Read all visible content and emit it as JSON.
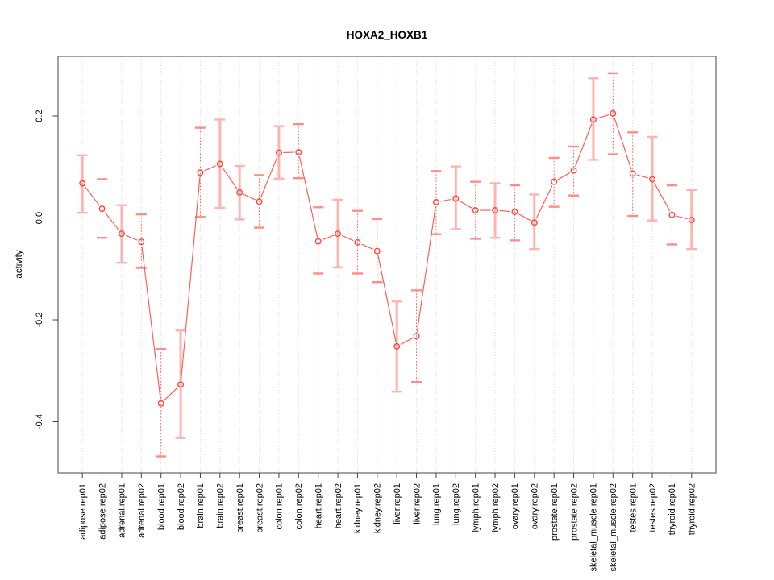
{
  "window": {
    "background": "#ffffff"
  },
  "chart_data": {
    "type": "line",
    "variant": "points-with-error-bars",
    "title": "HOXA2_HOXB1",
    "xlabel": "",
    "ylabel": "activity",
    "legend_position": "none",
    "categories": [
      "adipose.rep01",
      "adipose.rep02",
      "adrenal.rep01",
      "adrenal.rep02",
      "blood.rep01",
      "blood.rep02",
      "brain.rep01",
      "brain.rep02",
      "breast.rep01",
      "breast.rep02",
      "colon.rep01",
      "colon.rep02",
      "heart.rep01",
      "heart.rep02",
      "kidney.rep01",
      "kidney.rep02",
      "liver.rep01",
      "liver.rep02",
      "lung.rep01",
      "lung.rep02",
      "lymph.rep01",
      "lymph.rep02",
      "ovary.rep01",
      "ovary.rep02",
      "prostate.rep01",
      "prostate.rep02",
      "skeletal_muscle.rep01",
      "skeletal_muscle.rep02",
      "testes.rep01",
      "testes.rep02",
      "thyroid.rep01",
      "thyroid.rep02"
    ],
    "series": [
      {
        "name": "HOXA2_HOXB1 activity",
        "values": [
          0.068,
          0.018,
          -0.031,
          -0.047,
          -0.364,
          -0.327,
          0.089,
          0.106,
          0.05,
          0.032,
          0.128,
          0.129,
          -0.046,
          -0.031,
          -0.048,
          -0.065,
          -0.252,
          -0.232,
          0.031,
          0.038,
          0.015,
          0.015,
          0.012,
          -0.009,
          0.071,
          0.093,
          0.193,
          0.205,
          0.087,
          0.076,
          0.006,
          -0.004
        ],
        "err_low": [
          0.01,
          -0.039,
          -0.088,
          -0.098,
          -0.468,
          -0.432,
          0.002,
          0.02,
          -0.003,
          -0.019,
          0.077,
          0.078,
          -0.109,
          -0.097,
          -0.109,
          -0.126,
          -0.341,
          -0.322,
          -0.032,
          -0.022,
          -0.041,
          -0.039,
          -0.044,
          -0.061,
          0.022,
          0.044,
          0.114,
          0.125,
          0.004,
          -0.005,
          -0.052,
          -0.061
        ],
        "err_high": [
          0.123,
          0.076,
          0.025,
          0.007,
          -0.257,
          -0.221,
          0.177,
          0.193,
          0.102,
          0.084,
          0.18,
          0.184,
          0.021,
          0.036,
          0.014,
          -0.002,
          -0.164,
          -0.142,
          0.092,
          0.101,
          0.071,
          0.068,
          0.064,
          0.046,
          0.118,
          0.14,
          0.274,
          0.284,
          0.168,
          0.159,
          0.064,
          0.055
        ],
        "error_line_styles": [
          "solid",
          "dotted",
          "solid",
          "dotted",
          "dotted",
          "solid",
          "dotted",
          "solid",
          "solid",
          "dotted",
          "solid",
          "dotted",
          "dotted",
          "solid",
          "dotted",
          "dotted",
          "solid",
          "dotted",
          "dotted",
          "solid",
          "dotted",
          "solid",
          "dotted",
          "solid",
          "dotted",
          "dotted",
          "solid",
          "dotted",
          "dotted",
          "solid",
          "dotted",
          "solid"
        ]
      }
    ],
    "yticks": [
      0.2,
      0.0,
      -0.2,
      -0.4
    ],
    "ytick_labels": [
      "0.2",
      "0.0",
      "-0.2",
      "-0.4"
    ],
    "ylim": [
      -0.5004,
      0.3171
    ],
    "grid": {
      "vertical": "dotted line at every category",
      "horizontal": "dotted line at y = 0 only"
    },
    "colors": {
      "point": "#ff453b",
      "segment": "#ff5a50",
      "errorbar_solid": "#ffb3ae",
      "errorbar_dotted": "#ff5a50",
      "errorbar_cap": "#ff8d85",
      "gridline": "#d9d9d9",
      "zero_gridline": "#cccccc",
      "frame": "#8a8a8a",
      "tick": "#404040",
      "text": "#000000"
    }
  }
}
